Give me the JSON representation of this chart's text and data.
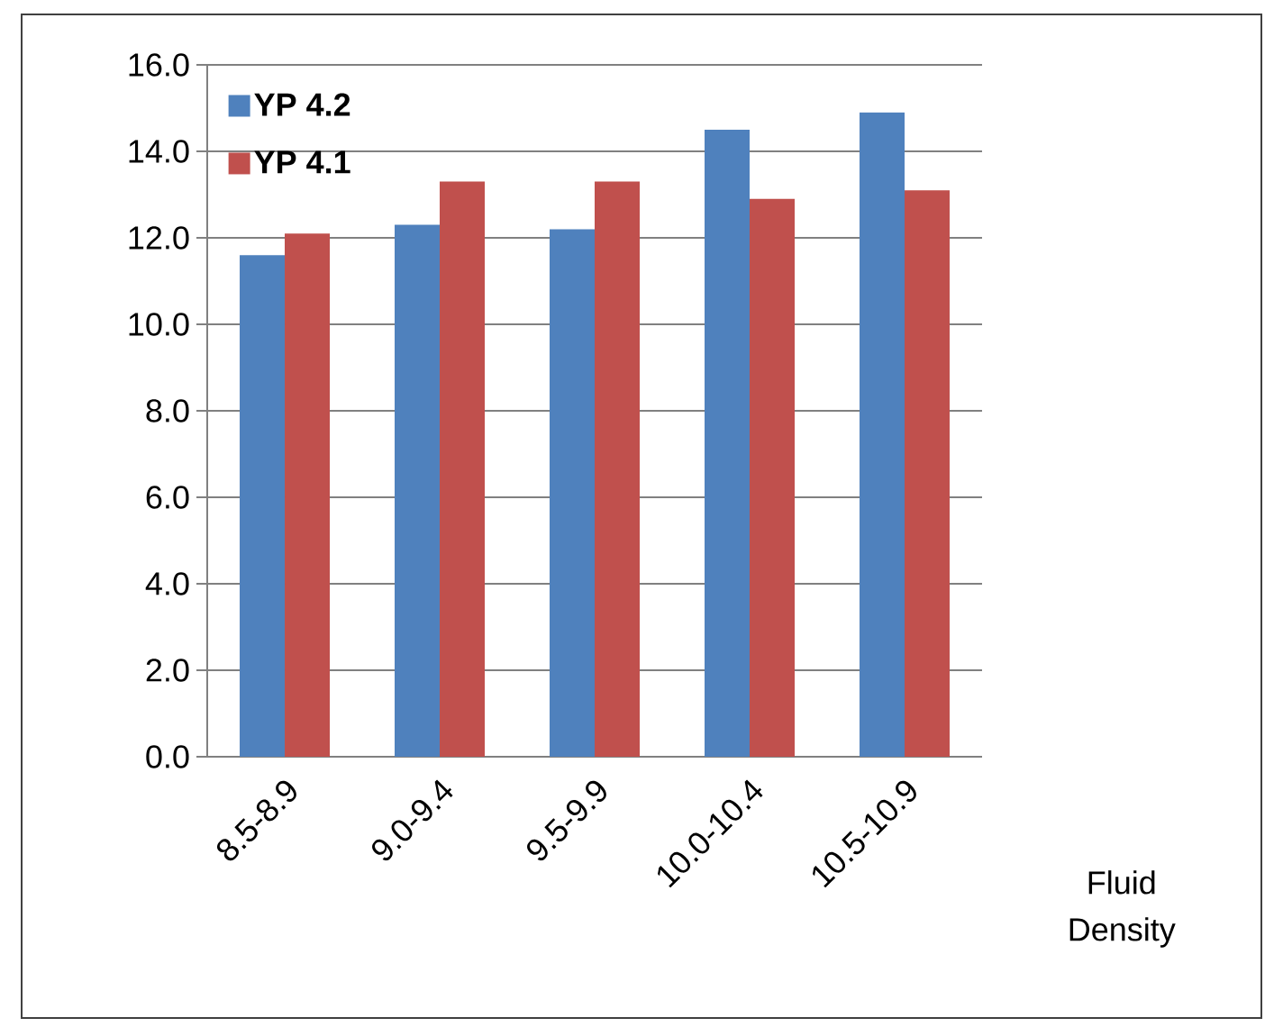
{
  "chart_data": {
    "type": "bar",
    "xlabel": "Fluid Density",
    "categories": [
      "8.5-8.9",
      "9.0-9.4",
      "9.5-9.9",
      "10.0-10.4",
      "10.5-10.9"
    ],
    "series": [
      {
        "name": "YP 4.2",
        "color": "#4f81bd",
        "values": [
          11.6,
          12.3,
          12.2,
          14.5,
          14.9
        ]
      },
      {
        "name": "YP 4.1",
        "color": "#c0504d",
        "values": [
          12.1,
          13.3,
          13.3,
          12.9,
          13.1
        ]
      }
    ],
    "ylim": [
      0,
      16
    ],
    "yticks": [
      {
        "value": 0,
        "label": "0.0"
      },
      {
        "value": 2,
        "label": "2.0"
      },
      {
        "value": 4,
        "label": "4.0"
      },
      {
        "value": 6,
        "label": "6.0"
      },
      {
        "value": 8,
        "label": "8.0"
      },
      {
        "value": 10,
        "label": "10.0"
      },
      {
        "value": 12,
        "label": "12.0"
      },
      {
        "value": 14,
        "label": "14.0"
      },
      {
        "value": 16,
        "label": "16.0"
      }
    ],
    "grid": "y",
    "legend": "top left"
  }
}
